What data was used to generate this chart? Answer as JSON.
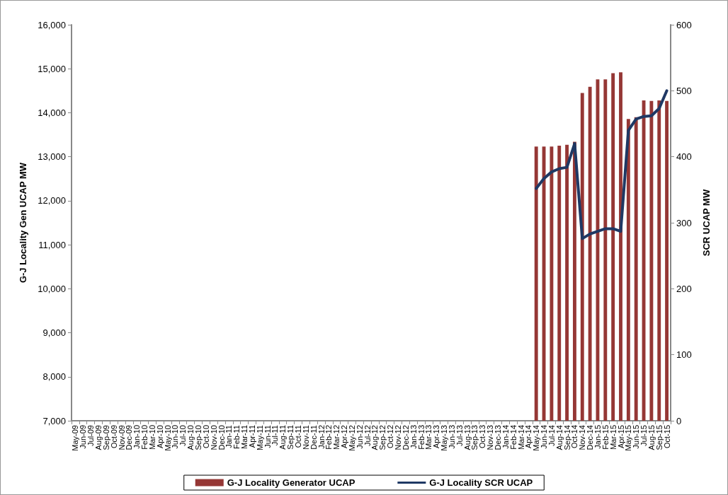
{
  "chart_data": {
    "type": "bar",
    "ylabel": "G-J Locality Gen UCAP MW",
    "y2label": "SCR UCAP MW",
    "categories": [
      "May-09",
      "Jun-09",
      "Jul-09",
      "Aug-09",
      "Sep-09",
      "Oct-09",
      "Nov-09",
      "Dec-09",
      "Jan-10",
      "Feb-10",
      "Mar-10",
      "Apr-10",
      "May-10",
      "Jun-10",
      "Jul-10",
      "Aug-10",
      "Sep-10",
      "Oct-10",
      "Nov-10",
      "Dec-10",
      "Jan-11",
      "Feb-11",
      "Mar-11",
      "Apr-11",
      "May-11",
      "Jun-11",
      "Jul-11",
      "Aug-11",
      "Sep-11",
      "Oct-11",
      "Nov-11",
      "Dec-11",
      "Jan-12",
      "Feb-12",
      "Mar-12",
      "Apr-12",
      "May-12",
      "Jun-12",
      "Jul-12",
      "Aug-12",
      "Sep-12",
      "Oct-12",
      "Nov-12",
      "Dec-12",
      "Jan-13",
      "Feb-13",
      "Mar-13",
      "Apr-13",
      "May-13",
      "Jun-13",
      "Jul-13",
      "Aug-13",
      "Sep-13",
      "Oct-13",
      "Nov-13",
      "Dec-13",
      "Jan-14",
      "Feb-14",
      "Mar-14",
      "Apr-14",
      "May-14",
      "Jun-14",
      "Jul-14",
      "Aug-14",
      "Sep-14",
      "Oct-14",
      "Nov-14",
      "Dec-14",
      "Jan-15",
      "Feb-15",
      "Mar-15",
      "Apr-15",
      "May-15",
      "Jun-15",
      "Jul-15",
      "Aug-15",
      "Sep-15",
      "Oct-15"
    ],
    "series": [
      {
        "name": "G-J Locality Generator UCAP",
        "color": "#953735",
        "values": [
          null,
          null,
          null,
          null,
          null,
          null,
          null,
          null,
          null,
          null,
          null,
          null,
          null,
          null,
          null,
          null,
          null,
          null,
          null,
          null,
          null,
          null,
          null,
          null,
          null,
          null,
          null,
          null,
          null,
          null,
          null,
          null,
          null,
          null,
          null,
          null,
          null,
          null,
          null,
          null,
          null,
          null,
          null,
          null,
          null,
          null,
          null,
          null,
          null,
          null,
          null,
          null,
          null,
          null,
          null,
          null,
          null,
          null,
          null,
          null,
          13230,
          13230,
          13230,
          13250,
          13270,
          13340,
          14450,
          14590,
          14760,
          14760,
          14900,
          14920,
          13860,
          13900,
          14280,
          14270,
          14280,
          14270
        ]
      },
      {
        "name": "G-J Locality SCR UCAP",
        "type": "line",
        "axis": "y2",
        "color": "#1f3864",
        "values": [
          null,
          null,
          null,
          null,
          null,
          null,
          null,
          null,
          null,
          null,
          null,
          null,
          null,
          null,
          null,
          null,
          null,
          null,
          null,
          null,
          null,
          null,
          null,
          null,
          null,
          null,
          null,
          null,
          null,
          null,
          null,
          null,
          null,
          null,
          null,
          null,
          null,
          null,
          null,
          null,
          null,
          null,
          null,
          null,
          null,
          null,
          null,
          null,
          null,
          null,
          null,
          null,
          null,
          null,
          null,
          null,
          null,
          null,
          null,
          null,
          352,
          367,
          377,
          382,
          384,
          420,
          276,
          283,
          287,
          291,
          291,
          287,
          440,
          457,
          461,
          462,
          473,
          500
        ]
      }
    ],
    "ylim": [
      7000,
      16000
    ],
    "yticks": [
      {
        "value": 7000,
        "label": "7,000"
      },
      {
        "value": 8000,
        "label": "8,000"
      },
      {
        "value": 9000,
        "label": "9,000"
      },
      {
        "value": 10000,
        "label": "10,000"
      },
      {
        "value": 11000,
        "label": "11,000"
      },
      {
        "value": 12000,
        "label": "12,000"
      },
      {
        "value": 13000,
        "label": "13,000"
      },
      {
        "value": 14000,
        "label": "14,000"
      },
      {
        "value": 15000,
        "label": "15,000"
      },
      {
        "value": 16000,
        "label": "16,000"
      }
    ],
    "y2lim": [
      0,
      600
    ],
    "y2ticks": [
      0,
      100,
      200,
      300,
      400,
      500,
      600
    ],
    "grid": false,
    "legend": "bottom",
    "marker": "none",
    "line_style": "solid"
  }
}
